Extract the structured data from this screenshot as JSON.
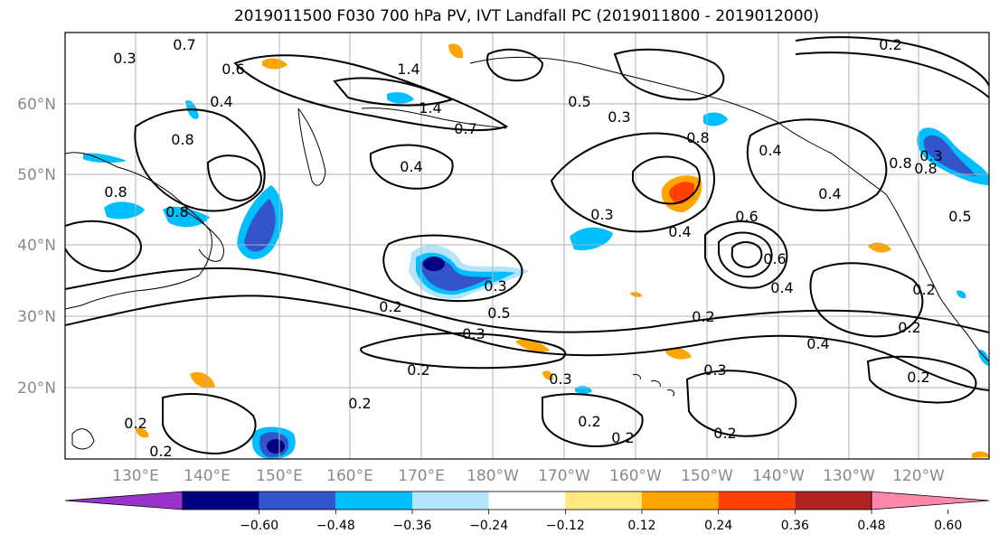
{
  "title": "2019011500 F030 700 hPa PV, IVT Landfall PC (2019011800 - 2019012000)",
  "lat_labels": [
    "60°N",
    "50°N",
    "40°N",
    "30°N",
    "20°N"
  ],
  "lon_labels": [
    "130°E",
    "140°E",
    "150°E",
    "160°E",
    "170°E",
    "180°W",
    "170°W",
    "160°W",
    "150°W",
    "140°W",
    "130°W",
    "120°W"
  ],
  "colorbar": {
    "ticks": [
      "−0.60",
      "−0.48",
      "−0.36",
      "−0.24",
      "−0.12",
      "0.12",
      "0.24",
      "0.36",
      "0.48",
      "0.60"
    ],
    "colors": [
      "#9933cc",
      "#000080",
      "#3355cc",
      "#00bfff",
      "#b3e5ff",
      "#ffffff",
      "#ffe880",
      "#ffa500",
      "#ff4000",
      "#b22222",
      "#ff88aa"
    ]
  },
  "contour_labels": [
    "0.7",
    "0.6",
    "1.4",
    "0.3",
    "0.2",
    "0.4",
    "0.8",
    "0.8",
    "1.4",
    "0.7",
    "0.5",
    "0.3",
    "0.8",
    "0.4",
    "0.8",
    "0.4",
    "0.8",
    "0.6",
    "0.4",
    "0.3",
    "0.6",
    "0.4",
    "0.5",
    "0.3",
    "0.5",
    "0.4",
    "0.2",
    "0.3",
    "0.2",
    "0.2",
    "0.4",
    "0.3",
    "0.3",
    "0.2",
    "0.2",
    "0.2",
    "0.2",
    "0.2",
    "0.2",
    "0.2",
    "0.2",
    "0.3",
    "0.8",
    "0.2"
  ]
}
